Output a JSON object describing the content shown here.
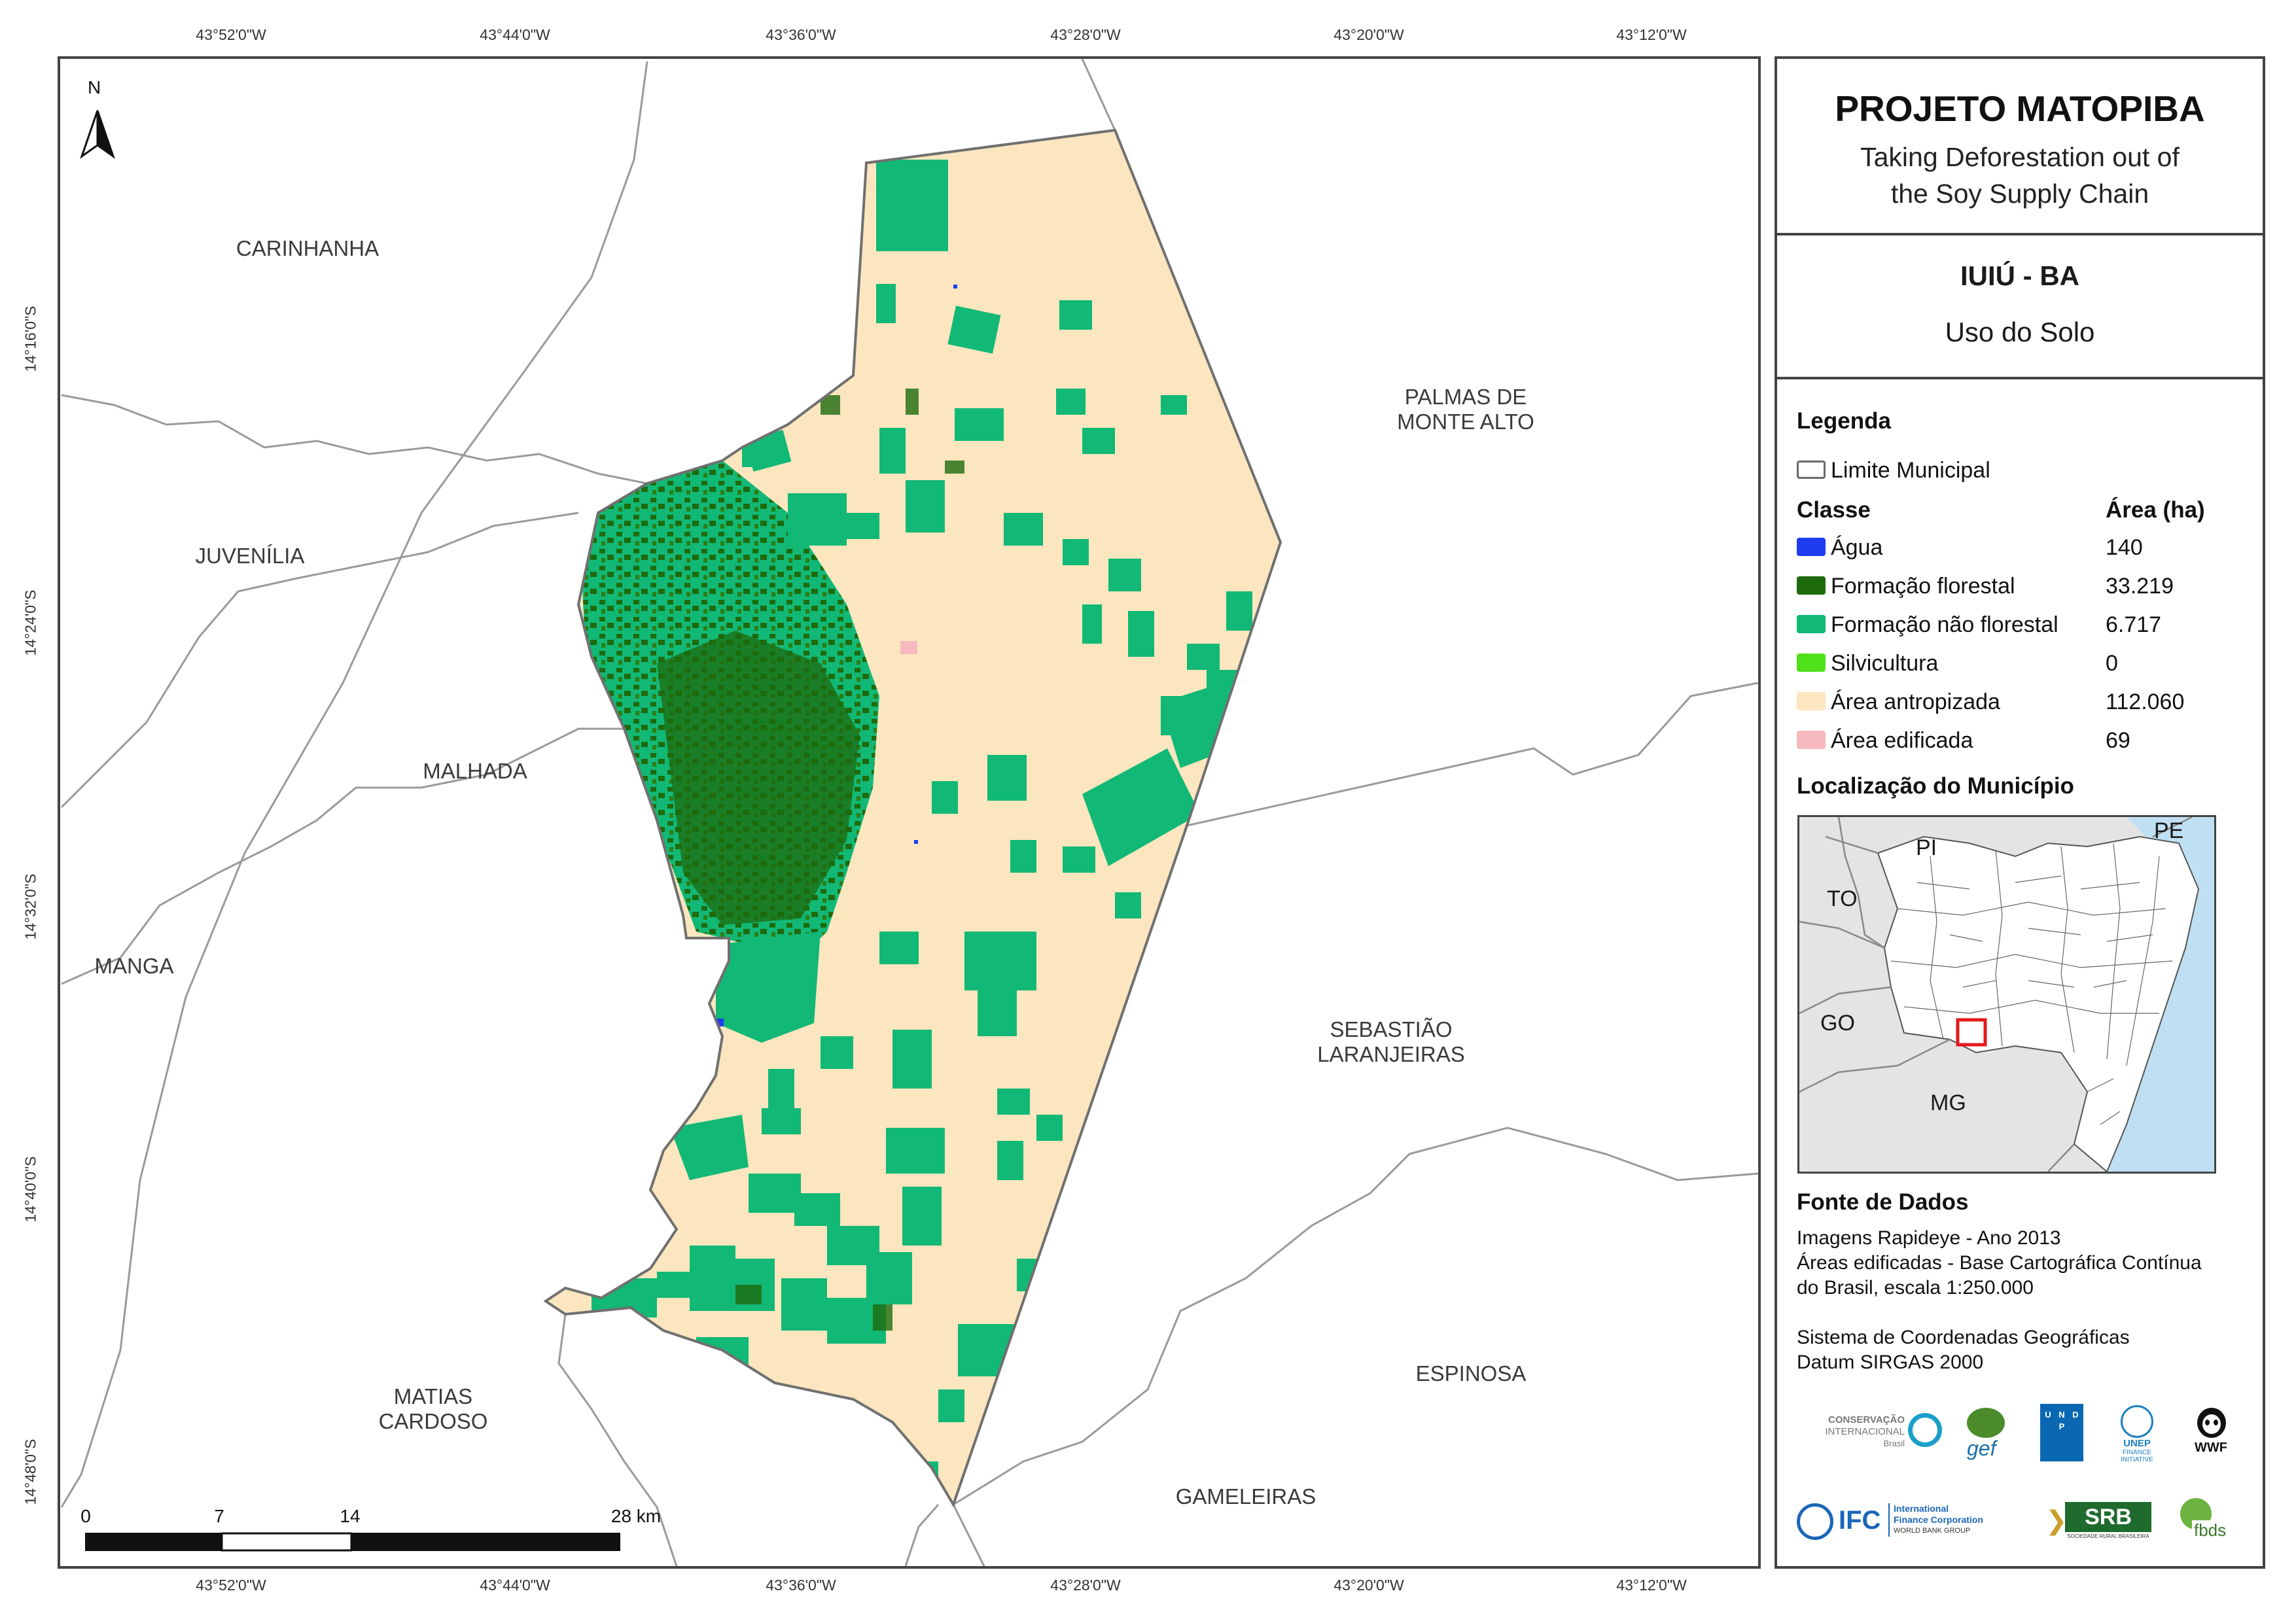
{
  "coords": {
    "top": [
      "43°52'0\"W",
      "43°44'0\"W",
      "43°36'0\"W",
      "43°28'0\"W",
      "43°20'0\"W",
      "43°12'0\"W"
    ],
    "bottom": [
      "43°52'0\"W",
      "43°44'0\"W",
      "43°36'0\"W",
      "43°28'0\"W",
      "43°20'0\"W",
      "43°12'0\"W"
    ],
    "left": [
      "14°16'0\"S",
      "14°24'0\"S",
      "14°32'0\"S",
      "14°40'0\"S",
      "14°48'0\"S"
    ]
  },
  "map": {
    "north": "N",
    "municipalities": {
      "carinhanha": "CARINHANHA",
      "juvenilia": "JUVENÍLIA",
      "malhada": "MALHADA",
      "manga": "MANGA",
      "matias": "MATIAS\nCARDOSO",
      "palmas": "PALMAS DE\nMONTE ALTO",
      "sebastiao": "SEBASTIÃO\nLARANJEIRAS",
      "espinosa": "ESPINOSA",
      "gameleiras": "GAMELEIRAS"
    },
    "scale": {
      "labels": [
        "0",
        "7",
        "14",
        "28 km"
      ]
    }
  },
  "header": {
    "title": "PROJETO MATOPIBA",
    "subtitle_1": "Taking Deforestation out of",
    "subtitle_2": "the Soy Supply Chain"
  },
  "municipality": {
    "name": "IUIÚ - BA",
    "theme": "Uso do Solo"
  },
  "legend": {
    "title": "Legenda",
    "boundary_label": "Limite Municipal",
    "class_header": "Classe",
    "area_header": "Área (ha)",
    "items": [
      {
        "label": "Água",
        "value": "140",
        "color": "#1f3df0"
      },
      {
        "label": "Formação florestal",
        "value": "33.219",
        "color": "#1e6b0e"
      },
      {
        "label": "Formação não florestal",
        "value": "6.717",
        "color": "#12b875"
      },
      {
        "label": "Silvicultura",
        "value": "0",
        "color": "#4ee11a"
      },
      {
        "label": "Área antropizada",
        "value": "112.060",
        "color": "#fbe6bf"
      },
      {
        "label": "Área edificada",
        "value": "69",
        "color": "#f6b9bd"
      }
    ],
    "location_title": "Localização do Município",
    "location_states": [
      "PI",
      "PE",
      "TO",
      "GO",
      "MG"
    ]
  },
  "sources": {
    "title": "Fonte de Dados",
    "line_1": "Imagens Rapideye - Ano 2013",
    "line_2": "Áreas edificadas - Base Cartográfica Contínua",
    "line_3": "do Brasil, escala 1:250.000",
    "line_4": "Sistema de Coordenadas Geográficas",
    "line_5": "Datum SIRGAS 2000"
  },
  "logos": {
    "ci_1": "CONSERVAÇÃO",
    "ci_2": "INTERNACIONAL",
    "ci_3": "Brasil",
    "gef": "gef",
    "undp": "U N D P",
    "unep_1": "UNEP",
    "unep_2": "FINANCE",
    "unep_3": "INITIATIVE",
    "wwf": "WWF",
    "ifc": "IFC",
    "ifc_1": "International",
    "ifc_2": "Finance Corporation",
    "ifc_3": "WORLD BANK GROUP",
    "srb": "SRB",
    "srb_sub": "SOCIEDADE RURAL BRASILEIRA",
    "fbds": "fbds"
  }
}
